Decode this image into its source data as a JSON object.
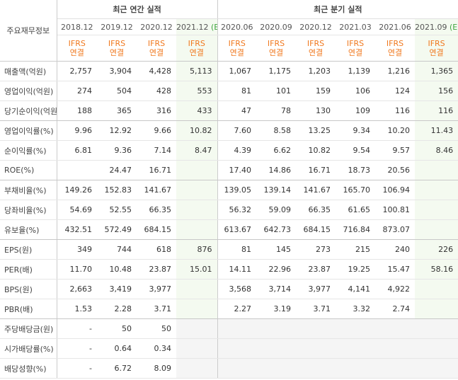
{
  "table": {
    "corner": "주요재무정보",
    "groups": [
      {
        "title": "최근 연간 실적"
      },
      {
        "title": "최근 분기 실적"
      }
    ],
    "columns": [
      {
        "period": "2018.12",
        "standard": "IFRS",
        "basis": "연결"
      },
      {
        "period": "2019.12",
        "standard": "IFRS",
        "basis": "연결"
      },
      {
        "period": "2020.12",
        "standard": "IFRS",
        "basis": "연결"
      },
      {
        "period": "2021.12",
        "estimate": "(E)",
        "standard": "IFRS",
        "basis": "연결"
      },
      {
        "period": "2020.06",
        "standard": "IFRS",
        "basis": "연결"
      },
      {
        "period": "2020.09",
        "standard": "IFRS",
        "basis": "연결"
      },
      {
        "period": "2020.12",
        "standard": "IFRS",
        "basis": "연결"
      },
      {
        "period": "2021.03",
        "standard": "IFRS",
        "basis": "연결"
      },
      {
        "period": "2021.06",
        "standard": "IFRS",
        "basis": "연결"
      },
      {
        "period": "2021.09",
        "estimate": "(E)",
        "standard": "IFRS",
        "basis": "연결"
      }
    ],
    "rows": [
      {
        "label": "매출액(억원)",
        "cells": [
          "2,757",
          "3,904",
          "4,428",
          "5,113",
          "1,067",
          "1,175",
          "1,203",
          "1,139",
          "1,216",
          "1,365"
        ]
      },
      {
        "label": "영업이익(억원)",
        "cells": [
          "274",
          "504",
          "428",
          "553",
          "81",
          "101",
          "159",
          "106",
          "124",
          "156"
        ]
      },
      {
        "label": "당기순이익(억원)",
        "cells": [
          "188",
          "365",
          "316",
          "433",
          "47",
          "78",
          "130",
          "109",
          "116",
          "116"
        ]
      },
      {
        "label": "영업이익률(%)",
        "cells": [
          "9.96",
          "12.92",
          "9.66",
          "10.82",
          "7.60",
          "8.58",
          "13.25",
          "9.34",
          "10.20",
          "11.43"
        ]
      },
      {
        "label": "순이익률(%)",
        "cells": [
          "6.81",
          "9.36",
          "7.14",
          "8.47",
          "4.39",
          "6.62",
          "10.82",
          "9.54",
          "9.57",
          "8.46"
        ]
      },
      {
        "label": "ROE(%)",
        "cells": [
          null,
          "24.47",
          "16.71",
          null,
          "17.40",
          "14.86",
          "16.71",
          "18.73",
          "20.56",
          null
        ]
      },
      {
        "label": "부채비율(%)",
        "cells": [
          "149.26",
          "152.83",
          "141.67",
          null,
          "139.05",
          "139.14",
          "141.67",
          "165.70",
          "106.94",
          null
        ]
      },
      {
        "label": "당좌비율(%)",
        "cells": [
          "54.69",
          "52.55",
          "66.35",
          null,
          "56.32",
          "59.09",
          "66.35",
          "61.65",
          "100.81",
          null
        ]
      },
      {
        "label": "유보율(%)",
        "cells": [
          "432.51",
          "572.49",
          "684.15",
          null,
          "613.67",
          "642.73",
          "684.15",
          "716.84",
          "873.07",
          null
        ]
      },
      {
        "label": "EPS(원)",
        "cells": [
          "349",
          "744",
          "618",
          "876",
          "81",
          "145",
          "273",
          "215",
          "240",
          "226"
        ]
      },
      {
        "label": "PER(배)",
        "cells": [
          "11.70",
          "10.48",
          "23.87",
          "15.01",
          "14.11",
          "22.96",
          "23.87",
          "19.25",
          "15.47",
          "58.16"
        ]
      },
      {
        "label": "BPS(원)",
        "cells": [
          "2,663",
          "3,419",
          "3,977",
          null,
          "3,568",
          "3,714",
          "3,977",
          "4,141",
          "4,922",
          null
        ]
      },
      {
        "label": "PBR(배)",
        "cells": [
          "1.53",
          "2.28",
          "3.71",
          null,
          "2.27",
          "3.19",
          "3.71",
          "3.32",
          "2.74",
          null
        ]
      },
      {
        "label": "주당배당금(원)",
        "cells": [
          "-",
          "50",
          "50",
          null,
          null,
          null,
          null,
          null,
          null,
          null
        ]
      },
      {
        "label": "시가배당률(%)",
        "cells": [
          "-",
          "0.64",
          "0.34",
          null,
          null,
          null,
          null,
          null,
          null,
          null
        ]
      },
      {
        "label": "배당성향(%)",
        "cells": [
          "-",
          "6.72",
          "8.09",
          null,
          null,
          null,
          null,
          null,
          null,
          null
        ]
      }
    ]
  }
}
